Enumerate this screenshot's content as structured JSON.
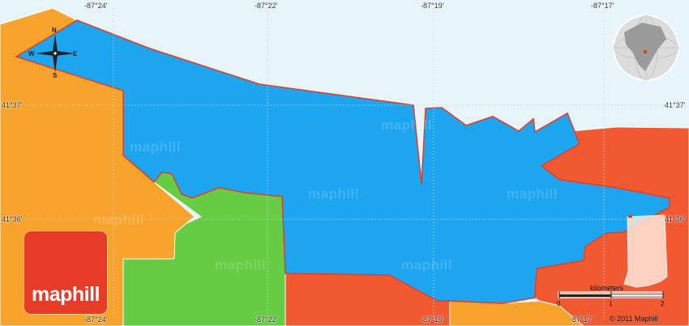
{
  "map": {
    "top_longitudes": [
      "-87°24'",
      "-87°22'",
      "-87°19'",
      "-87°17'"
    ],
    "bottom_longitudes": [
      "-87°24'",
      "-87°22'",
      "-87°19'",
      "-87°17'"
    ],
    "left_latitudes": [
      "41°37'",
      "41°36'"
    ],
    "right_latitudes": [
      "41°37'",
      "41°36'"
    ],
    "watermark_text": "maphill",
    "colors": {
      "water": "#e8f4fb",
      "selected_area": "#1ea5f0",
      "neighbor_orange": "#f8a42c",
      "neighbor_red": "#f15a31",
      "neighbor_green": "#66cc44",
      "border": "#e43c22"
    }
  },
  "compass": {
    "n": "N",
    "s": "S",
    "e": "E",
    "w": "W"
  },
  "logo": {
    "text": "maphill"
  },
  "scale_bar": {
    "title": "kilometers",
    "labels": [
      "0",
      "1",
      "2"
    ]
  },
  "copyright": "© 2011 Maphill",
  "icons": [
    "compass-rose-icon",
    "globe-locator-icon",
    "indiana-state-locator-icon"
  ]
}
